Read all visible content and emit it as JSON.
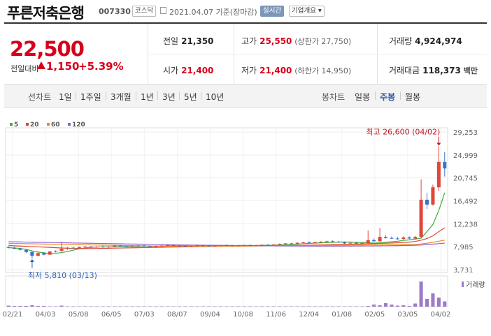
{
  "header": {
    "name": "푸른저축은행",
    "code": "007330",
    "market": "코스닥",
    "date": "2021.04.07 기준(장마감)",
    "realtime": "실시간",
    "company_info": "기업개요"
  },
  "quote": {
    "price": "22,500",
    "change_label": "전일대비",
    "change": "1,150",
    "change_pct": "+5.39%",
    "prev_label": "전일",
    "prev": "21,350",
    "high_label": "고가",
    "high": "25,550",
    "upper_limit": "(상한가 27,750)",
    "volume_label": "거래량",
    "volume": "4,924,974",
    "open_label": "시가",
    "open": "21,400",
    "low_label": "저가",
    "low": "21,400",
    "lower_limit": "(하한가 14,950)",
    "amount_label": "거래대금",
    "amount": "118,373",
    "amount_unit": "백만"
  },
  "tabs": {
    "line_label": "선차트",
    "line_periods": [
      "1일",
      "1주일",
      "3개월",
      "1년",
      "3년",
      "5년",
      "10년"
    ],
    "candle_label": "봉차트",
    "candle_periods": [
      "일봉",
      "주봉",
      "월봉"
    ],
    "selected_candle": "주봉"
  },
  "chart_data": {
    "type": "candlestick",
    "legend": [
      {
        "name": "5",
        "color": "#3cae3c"
      },
      {
        "name": "20",
        "color": "#e0463c"
      },
      {
        "name": "60",
        "color": "#f08a24"
      },
      {
        "name": "120",
        "color": "#9563c9"
      }
    ],
    "y_ticks": [
      "29,253",
      "24,999",
      "20,745",
      "16,492",
      "12,238",
      "7,985",
      "3,731"
    ],
    "ylim": [
      3731,
      29253
    ],
    "x_ticks": [
      "02/21",
      "04/03",
      "05/08",
      "06/05",
      "07/03",
      "08/07",
      "09/04",
      "10/08",
      "11/06",
      "12/04",
      "01/08",
      "02/05",
      "03/05",
      "04/02"
    ],
    "max_annotation": "최고 26,600 (04/02)",
    "min_annotation": "최저 5,810 (03/13)",
    "volume_label": "거래량",
    "colors": {
      "up": "#e0463c",
      "down": "#3a74c4",
      "volume": "#9b7bc9"
    },
    "candles": [
      {
        "o": 7900,
        "h": 8050,
        "l": 7700,
        "c": 7800
      },
      {
        "o": 7800,
        "h": 7950,
        "l": 7500,
        "c": 7600
      },
      {
        "o": 7600,
        "h": 7750,
        "l": 7300,
        "c": 7400
      },
      {
        "o": 7400,
        "h": 7500,
        "l": 6800,
        "c": 7000
      },
      {
        "o": 7000,
        "h": 7100,
        "l": 5810,
        "c": 6300
      },
      {
        "o": 6300,
        "h": 6900,
        "l": 6200,
        "c": 6800
      },
      {
        "o": 6800,
        "h": 7000,
        "l": 6400,
        "c": 6500
      },
      {
        "o": 6500,
        "h": 7200,
        "l": 6500,
        "c": 7100
      },
      {
        "o": 7100,
        "h": 7300,
        "l": 6900,
        "c": 7200
      },
      {
        "o": 7200,
        "h": 8900,
        "l": 7100,
        "c": 7600
      },
      {
        "o": 7600,
        "h": 7900,
        "l": 7400,
        "c": 7800
      },
      {
        "o": 7800,
        "h": 8000,
        "l": 7600,
        "c": 7700
      },
      {
        "o": 7700,
        "h": 8000,
        "l": 7600,
        "c": 7900
      },
      {
        "o": 7900,
        "h": 8100,
        "l": 7700,
        "c": 8000
      },
      {
        "o": 8000,
        "h": 8100,
        "l": 7800,
        "c": 7900
      },
      {
        "o": 7900,
        "h": 8100,
        "l": 7800,
        "c": 8000
      },
      {
        "o": 8000,
        "h": 8200,
        "l": 7800,
        "c": 7900
      },
      {
        "o": 7900,
        "h": 8100,
        "l": 7800,
        "c": 8000
      },
      {
        "o": 8000,
        "h": 8300,
        "l": 7900,
        "c": 8200
      },
      {
        "o": 8200,
        "h": 8300,
        "l": 8000,
        "c": 8100
      },
      {
        "o": 8100,
        "h": 8200,
        "l": 7900,
        "c": 8000
      },
      {
        "o": 8000,
        "h": 8200,
        "l": 7900,
        "c": 8100
      },
      {
        "o": 8100,
        "h": 8300,
        "l": 8000,
        "c": 8200
      },
      {
        "o": 8200,
        "h": 8300,
        "l": 8000,
        "c": 8100
      },
      {
        "o": 8100,
        "h": 8200,
        "l": 7900,
        "c": 8000
      },
      {
        "o": 8000,
        "h": 8200,
        "l": 7900,
        "c": 8100
      },
      {
        "o": 8100,
        "h": 8300,
        "l": 8000,
        "c": 8200
      },
      {
        "o": 8200,
        "h": 8400,
        "l": 8100,
        "c": 8300
      },
      {
        "o": 8300,
        "h": 8400,
        "l": 8100,
        "c": 8200
      },
      {
        "o": 8200,
        "h": 8300,
        "l": 8000,
        "c": 8100
      },
      {
        "o": 8100,
        "h": 8200,
        "l": 7900,
        "c": 8000
      },
      {
        "o": 8000,
        "h": 8200,
        "l": 7900,
        "c": 8100
      },
      {
        "o": 8100,
        "h": 8300,
        "l": 8000,
        "c": 8200
      },
      {
        "o": 8200,
        "h": 8300,
        "l": 8100,
        "c": 8150
      },
      {
        "o": 8150,
        "h": 8300,
        "l": 8000,
        "c": 8100
      },
      {
        "o": 8100,
        "h": 8200,
        "l": 8000,
        "c": 8150
      },
      {
        "o": 8150,
        "h": 8300,
        "l": 8050,
        "c": 8250
      },
      {
        "o": 8250,
        "h": 8400,
        "l": 8100,
        "c": 8200
      },
      {
        "o": 8200,
        "h": 8300,
        "l": 8100,
        "c": 8150
      },
      {
        "o": 8150,
        "h": 8300,
        "l": 8050,
        "c": 8200
      },
      {
        "o": 8200,
        "h": 8350,
        "l": 8100,
        "c": 8300
      },
      {
        "o": 8300,
        "h": 8400,
        "l": 8150,
        "c": 8200
      },
      {
        "o": 8200,
        "h": 8350,
        "l": 8100,
        "c": 8250
      },
      {
        "o": 8250,
        "h": 8400,
        "l": 8150,
        "c": 8350
      },
      {
        "o": 8350,
        "h": 8450,
        "l": 8200,
        "c": 8300
      },
      {
        "o": 8300,
        "h": 8450,
        "l": 8200,
        "c": 8400
      },
      {
        "o": 8400,
        "h": 8600,
        "l": 8300,
        "c": 8500
      },
      {
        "o": 8500,
        "h": 8650,
        "l": 8400,
        "c": 8600
      },
      {
        "o": 8600,
        "h": 8700,
        "l": 8400,
        "c": 8500
      },
      {
        "o": 8500,
        "h": 8800,
        "l": 8400,
        "c": 8700
      },
      {
        "o": 8700,
        "h": 8900,
        "l": 8600,
        "c": 8800
      },
      {
        "o": 8800,
        "h": 8950,
        "l": 8600,
        "c": 8700
      },
      {
        "o": 8700,
        "h": 8900,
        "l": 8600,
        "c": 8850
      },
      {
        "o": 8850,
        "h": 9000,
        "l": 8700,
        "c": 8900
      },
      {
        "o": 8900,
        "h": 9100,
        "l": 8800,
        "c": 9000
      },
      {
        "o": 9000,
        "h": 9150,
        "l": 8800,
        "c": 8900
      },
      {
        "o": 8900,
        "h": 9050,
        "l": 8700,
        "c": 8800
      },
      {
        "o": 8800,
        "h": 8950,
        "l": 8500,
        "c": 8600
      },
      {
        "o": 8600,
        "h": 8800,
        "l": 8500,
        "c": 8700
      },
      {
        "o": 8700,
        "h": 8850,
        "l": 8500,
        "c": 8600
      },
      {
        "o": 8600,
        "h": 8750,
        "l": 8500,
        "c": 8650
      },
      {
        "o": 8650,
        "h": 11000,
        "l": 8600,
        "c": 9200
      },
      {
        "o": 9200,
        "h": 9500,
        "l": 8900,
        "c": 9000
      },
      {
        "o": 9000,
        "h": 11500,
        "l": 8900,
        "c": 9800
      },
      {
        "o": 9800,
        "h": 10100,
        "l": 9500,
        "c": 9600
      },
      {
        "o": 9600,
        "h": 9900,
        "l": 9400,
        "c": 9500
      },
      {
        "o": 9500,
        "h": 9800,
        "l": 9300,
        "c": 9400
      },
      {
        "o": 9400,
        "h": 9900,
        "l": 9300,
        "c": 9700
      },
      {
        "o": 9700,
        "h": 9900,
        "l": 9400,
        "c": 9500
      },
      {
        "o": 9500,
        "h": 10000,
        "l": 9400,
        "c": 9800
      },
      {
        "o": 9800,
        "h": 20500,
        "l": 9600,
        "c": 16700
      },
      {
        "o": 16700,
        "h": 18000,
        "l": 15000,
        "c": 15800
      },
      {
        "o": 15800,
        "h": 19500,
        "l": 15600,
        "c": 19000
      },
      {
        "o": 19000,
        "h": 26600,
        "l": 18300,
        "c": 23700
      },
      {
        "o": 23700,
        "h": 25550,
        "l": 21000,
        "c": 22500
      }
    ],
    "ma": {
      "5": [
        7800,
        7750,
        7650,
        7500,
        7200,
        7000,
        6850,
        6700,
        6750,
        6900,
        7100,
        7350,
        7600,
        7750,
        7850,
        7900,
        7950,
        7950,
        8000,
        8050,
        8050,
        8050,
        8050,
        8100,
        8100,
        8100,
        8100,
        8150,
        8150,
        8150,
        8150,
        8100,
        8100,
        8100,
        8100,
        8150,
        8150,
        8150,
        8150,
        8200,
        8200,
        8200,
        8200,
        8250,
        8250,
        8250,
        8300,
        8350,
        8400,
        8450,
        8550,
        8600,
        8650,
        8700,
        8750,
        8800,
        8850,
        8850,
        8850,
        8800,
        8750,
        8700,
        8650,
        8700,
        8800,
        8900,
        9000,
        9150,
        9250,
        9400,
        9550,
        10800,
        12100,
        14700,
        18000
      ],
      "20": [
        8200,
        8150,
        8100,
        8050,
        8000,
        7950,
        7900,
        7850,
        7800,
        7750,
        7700,
        7680,
        7660,
        7650,
        7650,
        7660,
        7680,
        7700,
        7720,
        7740,
        7760,
        7780,
        7800,
        7820,
        7840,
        7860,
        7880,
        7900,
        7920,
        7940,
        7960,
        7980,
        8000,
        8020,
        8040,
        8060,
        8080,
        8100,
        8110,
        8120,
        8130,
        8140,
        8150,
        8160,
        8170,
        8180,
        8190,
        8200,
        8220,
        8240,
        8260,
        8280,
        8300,
        8320,
        8350,
        8380,
        8400,
        8420,
        8450,
        8480,
        8500,
        8530,
        8560,
        8600,
        8630,
        8670,
        8720,
        8780,
        8850,
        8950,
        9200,
        9500,
        10000,
        10800,
        11500
      ],
      "60": [
        8600,
        8580,
        8560,
        8540,
        8520,
        8500,
        8480,
        8460,
        8440,
        8420,
        8400,
        8380,
        8360,
        8340,
        8320,
        8300,
        8280,
        8260,
        8240,
        8220,
        8200,
        8180,
        8160,
        8140,
        8120,
        8100,
        8090,
        8080,
        8070,
        8060,
        8050,
        8050,
        8050,
        8050,
        8050,
        8060,
        8070,
        8080,
        8090,
        8100,
        8110,
        8120,
        8130,
        8140,
        8150,
        8160,
        8170,
        8180,
        8190,
        8200,
        8210,
        8220,
        8230,
        8240,
        8250,
        8260,
        8270,
        8280,
        8290,
        8300,
        8310,
        8320,
        8330,
        8340,
        8350,
        8360,
        8370,
        8380,
        8400,
        8420,
        8500,
        8620,
        8800,
        9000,
        9200
      ],
      "120": [
        8900,
        8880,
        8860,
        8840,
        8820,
        8800,
        8780,
        8760,
        8740,
        8720,
        8700,
        8680,
        8660,
        8640,
        8620,
        8600,
        8580,
        8560,
        8540,
        8520,
        8500,
        8480,
        8460,
        8440,
        8420,
        8400,
        8380,
        8360,
        8340,
        8320,
        8300,
        8290,
        8280,
        8270,
        8260,
        8250,
        8240,
        8230,
        8220,
        8210,
        8200,
        8190,
        8180,
        8170,
        8160,
        8150,
        8140,
        8130,
        8120,
        8110,
        8100,
        8100,
        8100,
        8100,
        8100,
        8100,
        8100,
        8100,
        8100,
        8110,
        8120,
        8130,
        8140,
        8150,
        8160,
        8170,
        8180,
        8200,
        8220,
        8250,
        8300,
        8380,
        8460,
        8550,
        8650
      ]
    },
    "volumes": [
      3,
      2,
      2,
      2,
      4,
      2,
      2,
      1,
      1,
      3,
      1,
      1,
      1,
      1,
      1,
      1,
      1,
      1,
      1,
      1,
      1,
      1,
      1,
      1,
      1,
      1,
      1,
      1,
      1,
      1,
      1,
      1,
      1,
      1,
      1,
      1,
      1,
      1,
      1,
      1,
      1,
      1,
      1,
      1,
      1,
      1,
      1,
      1,
      1,
      1,
      1,
      1,
      1,
      1,
      1,
      1,
      1,
      1,
      1,
      1,
      1,
      2,
      6,
      4,
      10,
      6,
      3,
      4,
      2,
      9,
      72,
      22,
      38,
      26,
      15
    ]
  }
}
